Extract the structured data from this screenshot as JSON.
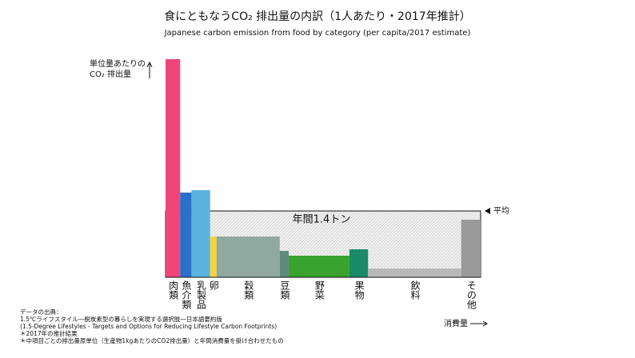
{
  "chart_data": {
    "type": "variable-width-bar",
    "title": "食にともなうCO₂ 排出量の内訳（1人あたり・2017年推計）",
    "subtitle": "Japanese carbon emission from food by category (per capita/2017 estimate)",
    "y_label": [
      "単位量あたりの",
      "CO₂ 排出量"
    ],
    "x_label": "消費量",
    "categories": [
      "肉類",
      "魚介類",
      "乳製品",
      "卵",
      "穀類",
      "豆類",
      "野菜",
      "果物",
      "飲料",
      "その他"
    ],
    "values": [
      273,
      106,
      109,
      51,
      51,
      33,
      27,
      35,
      11,
      72
    ],
    "widths": [
      18,
      14,
      23,
      8,
      78,
      11,
      75,
      23,
      115,
      24
    ],
    "colors": [
      "#f0457a",
      "#2a6fc9",
      "#5ab4e0",
      "#f5d33a",
      "#8fa8a0",
      "#5f8a7a",
      "#3aa22e",
      "#1a8a68",
      "#b8b8b8",
      "#9a9a9a"
    ],
    "average": 83,
    "average_label": "平均",
    "total_label": "年間1.4トン",
    "notes": [
      "データの出典：",
      "1.5℃ライフスタイル―脱炭素型の暮らしを実現する選択肢―日本語要約版",
      "(1.5-Degree Lifestyles - Targets and Options for Reducing Lifestyle Carbon Footprints)",
      "＊2017年の推計結果",
      "＊中項目ごとの排出量原単位（生産物1kgあたりのCO2排出量）と年間消費量を掛け合わせたもの"
    ]
  }
}
